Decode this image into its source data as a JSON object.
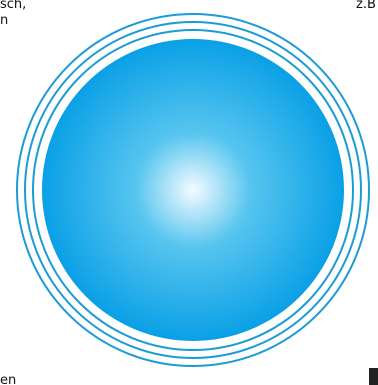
{
  "snippets": {
    "top_left": "sch,\nn",
    "top_right": "z.B",
    "bottom_left": "en"
  },
  "colors": {
    "ring_stroke": "#1c9bd6",
    "sphere_outer": "#0aa0e6",
    "sphere_mid": "#57c5ef",
    "sphere_center": "#f4fbff",
    "background": "#ffffff",
    "cropped_mark": "#222222"
  }
}
